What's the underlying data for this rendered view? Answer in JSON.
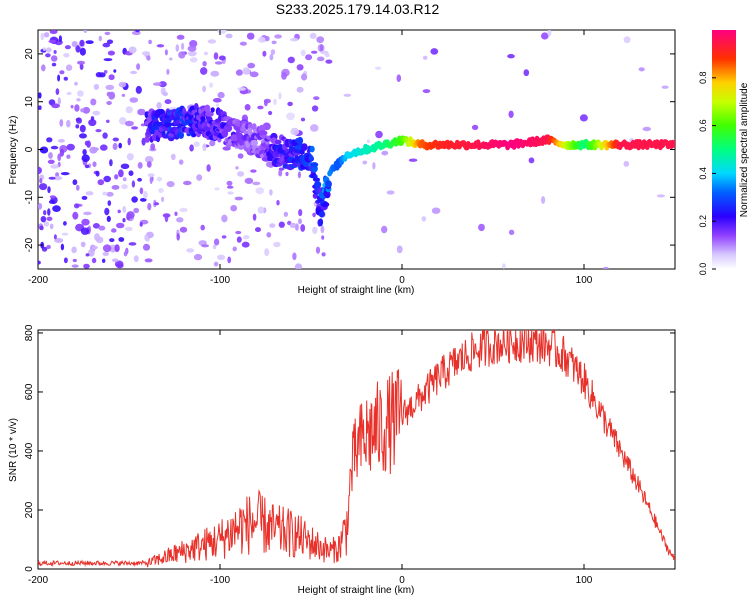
{
  "figure": {
    "title": "S233.2025.179.14.03.R12"
  },
  "colors": {
    "snr_line": "#e8312a",
    "spectral_ridge": "#ff2a2a",
    "background_speckle": "#a070ff"
  },
  "chart_data": [
    {
      "type": "heatmap",
      "title": "S233.2025.179.14.03.R12",
      "xlabel": "Height of straight line (km)",
      "ylabel": "Frequency (Hz)",
      "xlim": [
        -200,
        150
      ],
      "ylim": [
        -25,
        25
      ],
      "x_ticks": [
        -200,
        -100,
        0,
        100
      ],
      "y_ticks": [
        -20,
        -10,
        0,
        10,
        20
      ],
      "colorbar": {
        "label": "Normalized spectral amplitude",
        "range": [
          0,
          1
        ],
        "ticks": [
          0.0,
          0.2,
          0.4,
          0.6,
          0.8
        ]
      },
      "ridge": {
        "description_free": true,
        "height_km": [
          -140,
          -130,
          -120,
          -110,
          -100,
          -90,
          -80,
          -70,
          -60,
          -50,
          -45,
          -40,
          -35,
          -30,
          -20,
          -10,
          0,
          10,
          20,
          40,
          60,
          80,
          90,
          100,
          120,
          150
        ],
        "frequency_hz": [
          5,
          5,
          6,
          6,
          5,
          3,
          2,
          0,
          -1,
          -1,
          -13,
          -5,
          -3,
          -1,
          0,
          1,
          2,
          1,
          1,
          1,
          1,
          2,
          1,
          1,
          1,
          1
        ],
        "amplitude": [
          0.2,
          0.25,
          0.25,
          0.2,
          0.2,
          0.15,
          0.15,
          0.2,
          0.25,
          0.3,
          0.25,
          0.35,
          0.3,
          0.4,
          0.45,
          0.5,
          0.6,
          0.85,
          0.9,
          0.95,
          1.0,
          0.95,
          0.7,
          0.5,
          0.95,
          0.95
        ]
      },
      "grid": false
    },
    {
      "type": "line",
      "xlabel": "Height of straight line (km)",
      "ylabel": "SNR (10 * v/v)",
      "xlim": [
        -200,
        150
      ],
      "ylim": [
        0,
        810
      ],
      "x_ticks": [
        -200,
        -100,
        0,
        100
      ],
      "y_ticks": [
        0,
        200,
        400,
        600,
        800
      ],
      "grid": false,
      "x": [
        -200,
        -180,
        -160,
        -140,
        -130,
        -120,
        -110,
        -100,
        -90,
        -80,
        -70,
        -60,
        -50,
        -40,
        -35,
        -30,
        -28,
        -25,
        -20,
        -15,
        -10,
        -5,
        0,
        10,
        20,
        30,
        40,
        50,
        60,
        70,
        80,
        90,
        100,
        110,
        120,
        130,
        140,
        145,
        150
      ],
      "y": [
        20,
        20,
        20,
        20,
        40,
        60,
        80,
        100,
        140,
        160,
        130,
        120,
        90,
        60,
        70,
        150,
        330,
        400,
        450,
        470,
        480,
        500,
        520,
        580,
        650,
        700,
        740,
        760,
        770,
        770,
        760,
        720,
        640,
        520,
        400,
        280,
        150,
        80,
        30
      ]
    }
  ]
}
